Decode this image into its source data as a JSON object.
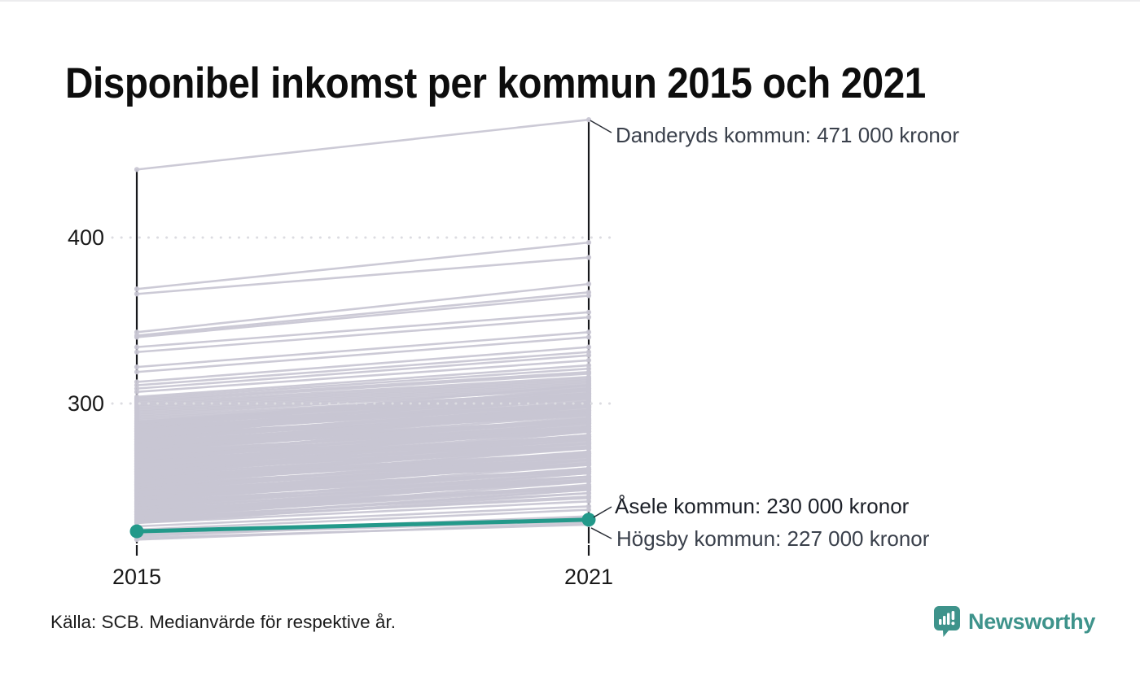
{
  "title": "Disponibel inkomst per kommun 2015 och 2021",
  "source": "Källa: SCB. Medianvärde för respektive år.",
  "brand": {
    "name": "Newsworthy",
    "icon": "newsworthy-speech-bubble-chart-icon",
    "color": "#3e938b"
  },
  "chart_data": {
    "type": "line",
    "subtype": "slope-chart",
    "x": [
      2015,
      2021
    ],
    "x_labels": [
      "2015",
      "2021"
    ],
    "unit": "tusen kronor (median disponibel inkomst)",
    "ylim": [
      215,
      480
    ],
    "grid": "dotted-horizontal",
    "yticks": [
      {
        "value": 400,
        "label": "400"
      },
      {
        "value": 300,
        "label": "300"
      }
    ],
    "colors": {
      "background_line": "#c8c6d3",
      "highlight_line": "#23998a",
      "axis": "#17181c",
      "gridline": "#dcdce1"
    },
    "annotations": [
      {
        "name": "Danderyds kommun",
        "year": 2021,
        "value": 471,
        "label": "Danderyds kommun: 471 000 kronor"
      },
      {
        "name": "Åsele kommun",
        "year": 2021,
        "value": 230,
        "label": "Åsele kommun: 230 000 kronor"
      },
      {
        "name": "Högsby kommun",
        "year": 2021,
        "value": 227,
        "label": "Högsby kommun: 227 000 kronor"
      }
    ],
    "highlight_series": {
      "name": "Åsele kommun",
      "values": [
        223,
        230
      ]
    },
    "named_background_series": [
      {
        "name": "Danderyds kommun",
        "values": [
          441,
          471
        ]
      },
      {
        "name": "Högsby kommun",
        "values": [
          219,
          227
        ]
      }
    ],
    "background_series_pairs": [
      [
        369,
        397
      ],
      [
        366,
        388
      ],
      [
        343,
        372
      ],
      [
        341,
        367
      ],
      [
        340,
        365
      ],
      [
        334,
        355
      ],
      [
        331,
        352
      ],
      [
        322,
        343
      ],
      [
        319,
        340
      ],
      [
        313,
        334
      ],
      [
        311,
        331
      ],
      [
        309,
        329
      ],
      [
        307,
        326
      ],
      [
        304,
        323
      ],
      [
        303,
        321
      ],
      [
        302,
        319
      ],
      [
        301,
        318
      ],
      [
        300,
        316
      ],
      [
        299,
        315
      ],
      [
        298,
        314
      ],
      [
        297,
        313
      ],
      [
        296,
        312
      ],
      [
        295,
        311
      ],
      [
        294,
        310
      ],
      [
        293,
        309
      ],
      [
        292,
        307
      ],
      [
        291,
        306
      ],
      [
        290,
        305
      ],
      [
        289,
        304
      ],
      [
        289,
        308
      ],
      [
        288,
        306
      ],
      [
        288,
        311
      ],
      [
        287,
        308
      ],
      [
        287,
        303
      ],
      [
        286,
        300
      ],
      [
        286,
        306
      ],
      [
        285,
        304
      ],
      [
        285,
        299
      ],
      [
        284,
        300
      ],
      [
        284,
        306
      ],
      [
        283,
        305
      ],
      [
        283,
        300
      ],
      [
        282,
        299
      ],
      [
        282,
        303
      ],
      [
        281,
        301
      ],
      [
        281,
        296
      ],
      [
        280,
        293
      ],
      [
        280,
        298
      ],
      [
        279,
        294
      ],
      [
        279,
        298
      ],
      [
        278,
        296
      ],
      [
        278,
        301
      ],
      [
        277,
        298
      ],
      [
        277,
        293
      ],
      [
        276,
        290
      ],
      [
        276,
        296
      ],
      [
        275,
        294
      ],
      [
        275,
        289
      ],
      [
        274,
        290
      ],
      [
        274,
        296
      ],
      [
        273,
        295
      ],
      [
        273,
        290
      ],
      [
        272,
        289
      ],
      [
        272,
        293
      ],
      [
        271,
        291
      ],
      [
        271,
        286
      ],
      [
        270,
        283
      ],
      [
        270,
        288
      ],
      [
        269,
        284
      ],
      [
        269,
        288
      ],
      [
        268,
        286
      ],
      [
        268,
        291
      ],
      [
        267,
        288
      ],
      [
        267,
        283
      ],
      [
        266,
        280
      ],
      [
        266,
        286
      ],
      [
        265,
        284
      ],
      [
        265,
        279
      ],
      [
        264,
        280
      ],
      [
        264,
        286
      ],
      [
        263,
        285
      ],
      [
        263,
        280
      ],
      [
        262,
        279
      ],
      [
        262,
        283
      ],
      [
        261,
        281
      ],
      [
        261,
        276
      ],
      [
        260,
        273
      ],
      [
        260,
        278
      ],
      [
        259,
        274
      ],
      [
        259,
        278
      ],
      [
        258,
        276
      ],
      [
        258,
        281
      ],
      [
        257,
        278
      ],
      [
        257,
        273
      ],
      [
        256,
        270
      ],
      [
        256,
        276
      ],
      [
        255,
        274
      ],
      [
        255,
        269
      ],
      [
        254,
        270
      ],
      [
        254,
        276
      ],
      [
        253,
        275
      ],
      [
        253,
        270
      ],
      [
        252,
        269
      ],
      [
        252,
        273
      ],
      [
        251,
        271
      ],
      [
        251,
        266
      ],
      [
        250,
        263
      ],
      [
        250,
        268
      ],
      [
        249,
        264
      ],
      [
        249,
        268
      ],
      [
        248,
        266
      ],
      [
        248,
        271
      ],
      [
        247,
        268
      ],
      [
        247,
        263
      ],
      [
        246,
        260
      ],
      [
        246,
        266
      ],
      [
        245,
        264
      ],
      [
        245,
        259
      ],
      [
        244,
        260
      ],
      [
        244,
        266
      ],
      [
        243,
        265
      ],
      [
        243,
        260
      ],
      [
        242,
        259
      ],
      [
        242,
        263
      ],
      [
        241,
        261
      ],
      [
        241,
        256
      ],
      [
        240,
        253
      ],
      [
        240,
        258
      ],
      [
        239,
        254
      ],
      [
        239,
        258
      ],
      [
        238,
        256
      ],
      [
        238,
        261
      ],
      [
        237,
        258
      ],
      [
        237,
        253
      ],
      [
        236,
        250
      ],
      [
        236,
        256
      ],
      [
        235,
        254
      ],
      [
        235,
        249
      ],
      [
        234,
        250
      ],
      [
        234,
        256
      ],
      [
        233,
        255
      ],
      [
        233,
        250
      ],
      [
        232,
        249
      ],
      [
        232,
        253
      ],
      [
        231,
        251
      ],
      [
        231,
        246
      ],
      [
        230,
        243
      ],
      [
        230,
        248
      ],
      [
        229,
        244
      ],
      [
        229,
        248
      ],
      [
        228,
        246
      ],
      [
        228,
        241
      ],
      [
        284,
        302
      ],
      [
        281,
        305
      ],
      [
        278,
        299
      ],
      [
        275,
        297
      ],
      [
        272,
        295
      ],
      [
        269,
        290
      ],
      [
        266,
        288
      ],
      [
        263,
        287
      ],
      [
        260,
        281
      ],
      [
        257,
        280
      ],
      [
        254,
        277
      ],
      [
        251,
        274
      ],
      [
        248,
        270
      ],
      [
        245,
        267
      ],
      [
        262,
        285
      ],
      [
        268,
        292
      ],
      [
        274,
        298
      ],
      [
        280,
        304
      ],
      [
        286,
        309
      ],
      [
        258,
        283
      ],
      [
        226,
        238
      ],
      [
        224,
        236
      ],
      [
        222,
        232
      ],
      [
        221,
        229
      ],
      [
        220,
        231
      ],
      [
        218,
        228
      ]
    ]
  }
}
